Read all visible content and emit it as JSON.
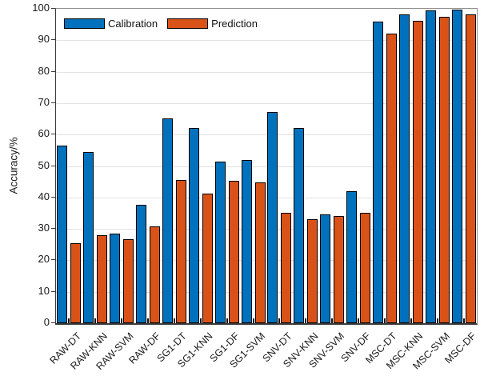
{
  "chart_data": {
    "type": "bar",
    "title": "",
    "xlabel": "",
    "ylabel": "Accuracy/%",
    "ylim": [
      0,
      100
    ],
    "yticks": [
      0,
      10,
      20,
      30,
      40,
      50,
      60,
      70,
      80,
      90,
      100
    ],
    "grid": "horizontal",
    "legend_position": "top-left-inside",
    "xtick_rotation": 45,
    "bar_edge_color": "#000000",
    "categories": [
      "RAW-DT",
      "RAW-KNN",
      "RAW-SVM",
      "RAW-DF",
      "SG1-DT",
      "SG1-KNN",
      "SG1-DF",
      "SG1-SVM",
      "SNV-DT",
      "SNV-KNN",
      "SNV-SVM",
      "SNV-DF",
      "MSC-DT",
      "MSC-KNN",
      "MSC-SVM",
      "MSC-DF"
    ],
    "series": [
      {
        "name": "Calibration",
        "color": "#0072BD",
        "values": [
          56.5,
          54.4,
          28.5,
          37.7,
          65.2,
          62.0,
          51.3,
          51.8,
          67.3,
          62.0,
          34.5,
          42.0,
          95.9,
          98.3,
          99.6,
          99.8
        ]
      },
      {
        "name": "Prediction",
        "color": "#D95319",
        "values": [
          25.5,
          28.0,
          26.7,
          30.7,
          45.5,
          41.2,
          45.2,
          44.7,
          35.0,
          33.2,
          34.0,
          35.2,
          92.2,
          96.1,
          97.5,
          98.2
        ]
      }
    ]
  },
  "colors": {
    "grid": "#e2e2e2",
    "axis": "#3a3a3a",
    "box": "#8f8f8f",
    "text": "#1a1a1a"
  }
}
